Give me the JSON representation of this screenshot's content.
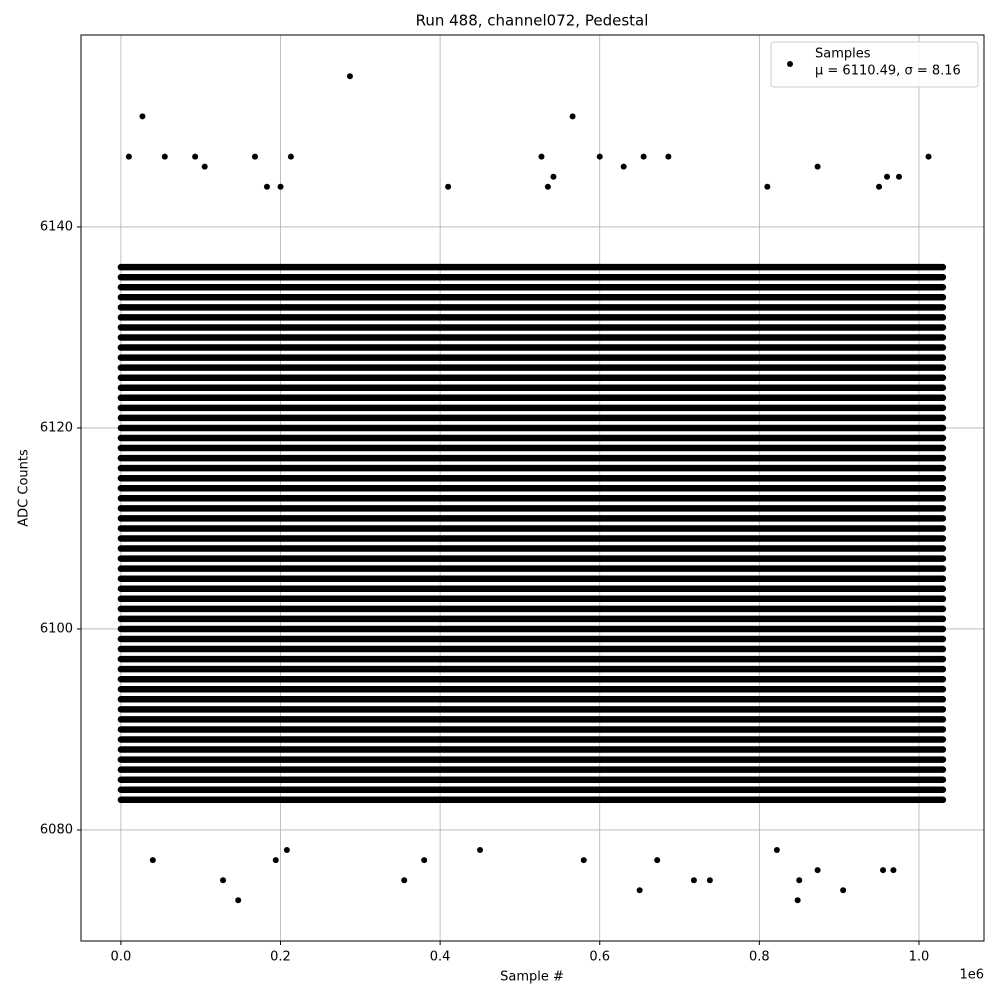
{
  "chart_data": {
    "type": "scatter",
    "title": "Run 488, channel072, Pedestal",
    "x_label": "Sample #",
    "y_label": "ADC Counts",
    "x_offset_label": "1e6",
    "xlim": [
      -50000,
      1081500
    ],
    "ylim": [
      6068.95,
      6159.1
    ],
    "xticks": [
      {
        "value": 0,
        "label": "0.0"
      },
      {
        "value": 200000,
        "label": "0.2"
      },
      {
        "value": 400000,
        "label": "0.4"
      },
      {
        "value": 600000,
        "label": "0.6"
      },
      {
        "value": 800000,
        "label": "0.8"
      },
      {
        "value": 1000000,
        "label": "1.0"
      }
    ],
    "yticks": [
      6080,
      6100,
      6120,
      6140
    ],
    "grid": true,
    "legend_loc": "upper right",
    "legend_note": "μ = 6110.49, σ = 8.16",
    "series": [
      {
        "name": "Samples",
        "color": "#000000",
        "x": [
          287000,
          27000,
          566000,
          147000,
          848000,
          650000,
          905000,
          128000,
          355000,
          718000,
          738000,
          850000,
          10000,
          55000,
          93000,
          168000,
          213000,
          527000,
          600000,
          655000,
          686000,
          1012000,
          630000,
          873000,
          105000,
          950000,
          410000,
          810000,
          40000,
          194000,
          380000,
          580000,
          672000,
          873000,
          968000,
          208000,
          450000,
          822000,
          955000,
          975000,
          960000,
          535000,
          542000,
          200000,
          183000
        ],
        "values": [
          6155,
          6151,
          6151,
          6073,
          6073,
          6074,
          6074,
          6075,
          6075,
          6075,
          6075,
          6075,
          6147,
          6147,
          6147,
          6147,
          6147,
          6147,
          6147,
          6147,
          6147,
          6147,
          6146,
          6146,
          6146,
          6144,
          6144,
          6144,
          6077,
          6077,
          6077,
          6077,
          6077,
          6076,
          6076,
          6078,
          6078,
          6078,
          6076,
          6145,
          6145,
          6144,
          6145,
          6144,
          6144
        ]
      }
    ],
    "bands": {
      "x": [
        0,
        1030000
      ],
      "levels": [
        6083,
        6084,
        6085,
        6086,
        6087,
        6088,
        6089,
        6090,
        6091,
        6092,
        6093,
        6094,
        6095,
        6096,
        6097,
        6098,
        6099,
        6100,
        6101,
        6102,
        6103,
        6104,
        6105,
        6106,
        6107,
        6108,
        6109,
        6110,
        6111,
        6112,
        6113,
        6114,
        6115,
        6116,
        6117,
        6118,
        6119,
        6120,
        6121,
        6122,
        6123,
        6124,
        6125,
        6126,
        6127,
        6128,
        6129,
        6130,
        6131,
        6132,
        6133,
        6134,
        6135,
        6136
      ]
    }
  }
}
